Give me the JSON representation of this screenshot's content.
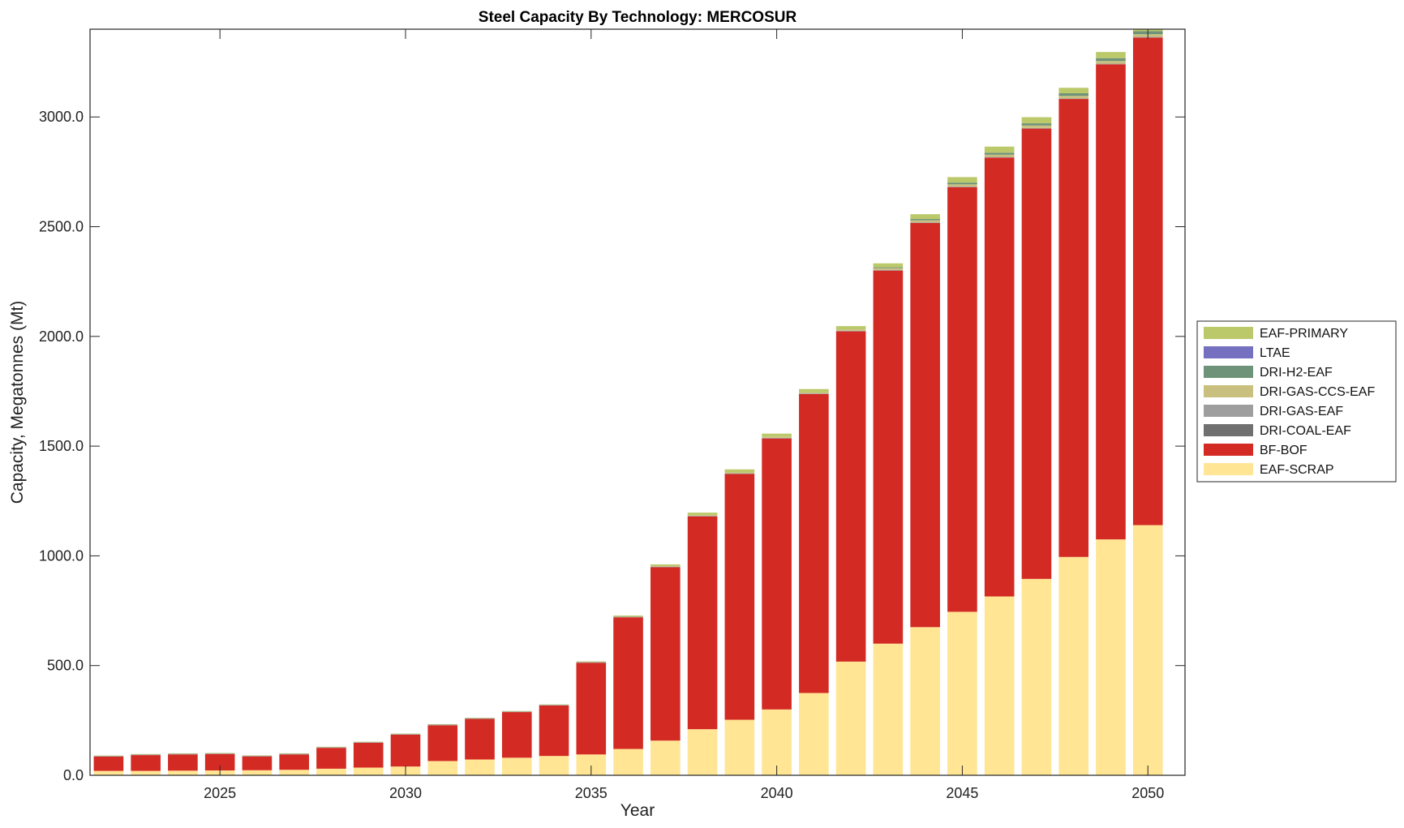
{
  "chart_data": {
    "type": "bar",
    "stacked": true,
    "title": "Steel Capacity By Technology: MERCOSUR",
    "xlabel": "Year",
    "ylabel": "Capacity, Megatonnes (Mt)",
    "xlim": [
      2021.5,
      2051
    ],
    "ylim": [
      0,
      3400
    ],
    "yticks": [
      0,
      500,
      1000,
      1500,
      2000,
      2500,
      3000
    ],
    "ytick_labels": [
      "0.0",
      "500.0",
      "1000.0",
      "1500.0",
      "2000.0",
      "2500.0",
      "3000.0"
    ],
    "xticks": [
      2025,
      2030,
      2035,
      2040,
      2045,
      2050
    ],
    "xtick_labels": [
      "2025",
      "2030",
      "2035",
      "2040",
      "2045",
      "2050"
    ],
    "grid": false,
    "legend_position": "outside-right",
    "x": [
      2022,
      2023,
      2024,
      2025,
      2026,
      2027,
      2028,
      2029,
      2030,
      2031,
      2032,
      2033,
      2034,
      2035,
      2036,
      2037,
      2038,
      2039,
      2040,
      2041,
      2042,
      2043,
      2044,
      2045,
      2046,
      2047,
      2048,
      2049,
      2050
    ],
    "series": [
      {
        "name": "EAF-SCRAP",
        "color": "#FFE594",
        "values": [
          20,
          20,
          21,
          22,
          23,
          25,
          30,
          35,
          40,
          65,
          72,
          80,
          88,
          95,
          120,
          158,
          210,
          253,
          300,
          375,
          518,
          600,
          675,
          745,
          815,
          895,
          995,
          1075,
          1140
        ]
      },
      {
        "name": "BF-BOF",
        "color": "#D42A24",
        "values": [
          65,
          72,
          74,
          75,
          63,
          70,
          95,
          113,
          145,
          163,
          185,
          208,
          230,
          418,
          600,
          790,
          970,
          1120,
          1235,
          1362,
          1505,
          1700,
          1842,
          1935,
          2000,
          2052,
          2087,
          2165,
          2222
        ]
      },
      {
        "name": "DRI-COAL-EAF",
        "color": "#707070",
        "values": [
          0,
          0,
          0,
          0,
          0,
          0,
          0,
          0,
          0,
          0,
          0,
          0,
          0,
          0,
          0,
          0,
          0,
          0,
          0,
          0,
          0,
          0,
          0,
          0,
          0,
          0,
          0,
          0,
          0
        ]
      },
      {
        "name": "DRI-GAS-EAF",
        "color": "#9E9E9E",
        "values": [
          3,
          3,
          3,
          3,
          3,
          3,
          3,
          3,
          3,
          3,
          3,
          3,
          3,
          3,
          3,
          3,
          3,
          3,
          3,
          3,
          3,
          3,
          3,
          3,
          3,
          3,
          3,
          3,
          3
        ]
      },
      {
        "name": "DRI-GAS-CCS-EAF",
        "color": "#C9C07F",
        "values": [
          0,
          0,
          0,
          0,
          0,
          0,
          0,
          0,
          0,
          0,
          0,
          0,
          0,
          0,
          0,
          2,
          2,
          3,
          4,
          5,
          6,
          8,
          9,
          10,
          10,
          11,
          11,
          12,
          12
        ]
      },
      {
        "name": "DRI-H2-EAF",
        "color": "#6E9378",
        "values": [
          0,
          0,
          0,
          0,
          0,
          0,
          0,
          0,
          0,
          0,
          0,
          0,
          0,
          0,
          0,
          0,
          0,
          0,
          0,
          0,
          0,
          4,
          6,
          8,
          9,
          10,
          12,
          13,
          14
        ]
      },
      {
        "name": "LTAE",
        "color": "#7570C0",
        "values": [
          0,
          0,
          0,
          0,
          0,
          0,
          0,
          0,
          0,
          0,
          0,
          0,
          0,
          0,
          0,
          0,
          0,
          0,
          0,
          0,
          0,
          0,
          0,
          0,
          0,
          0,
          0,
          0,
          0
        ]
      },
      {
        "name": "EAF-PRIMARY",
        "color": "#BCC96A",
        "values": [
          2,
          2,
          2,
          2,
          2,
          2,
          2,
          2,
          2,
          2,
          2,
          2,
          2,
          3,
          5,
          8,
          12,
          15,
          15,
          15,
          15,
          18,
          22,
          25,
          28,
          28,
          25,
          28,
          30
        ]
      }
    ],
    "legend_order": [
      "EAF-PRIMARY",
      "LTAE",
      "DRI-H2-EAF",
      "DRI-GAS-CCS-EAF",
      "DRI-GAS-EAF",
      "DRI-COAL-EAF",
      "BF-BOF",
      "EAF-SCRAP"
    ]
  }
}
